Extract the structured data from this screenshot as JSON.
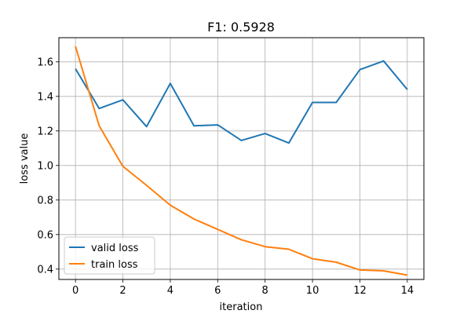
{
  "chart_data": {
    "type": "line",
    "title": "F1: 0.5928",
    "xlabel": "iteration",
    "ylabel": "loss value",
    "x": [
      0,
      1,
      2,
      3,
      4,
      5,
      6,
      7,
      8,
      9,
      10,
      11,
      12,
      13,
      14
    ],
    "xticks": [
      0,
      2,
      4,
      6,
      8,
      10,
      12,
      14
    ],
    "yticks": [
      0.4,
      0.6,
      0.8,
      1.0,
      1.2,
      1.4,
      1.6
    ],
    "xlim": [
      -0.7,
      14.7
    ],
    "ylim": [
      0.34,
      1.74
    ],
    "grid": true,
    "legend_position": "lower-left",
    "series": [
      {
        "name": "valid loss",
        "color": "#1f77b4",
        "values": [
          1.56,
          1.33,
          1.38,
          1.225,
          1.475,
          1.23,
          1.235,
          1.145,
          1.185,
          1.13,
          1.365,
          1.365,
          1.555,
          1.605,
          1.44
        ]
      },
      {
        "name": "train loss",
        "color": "#ff7f0e",
        "values": [
          1.69,
          1.23,
          0.995,
          0.885,
          0.77,
          0.69,
          0.63,
          0.57,
          0.53,
          0.515,
          0.46,
          0.44,
          0.395,
          0.39,
          0.365
        ]
      }
    ]
  }
}
